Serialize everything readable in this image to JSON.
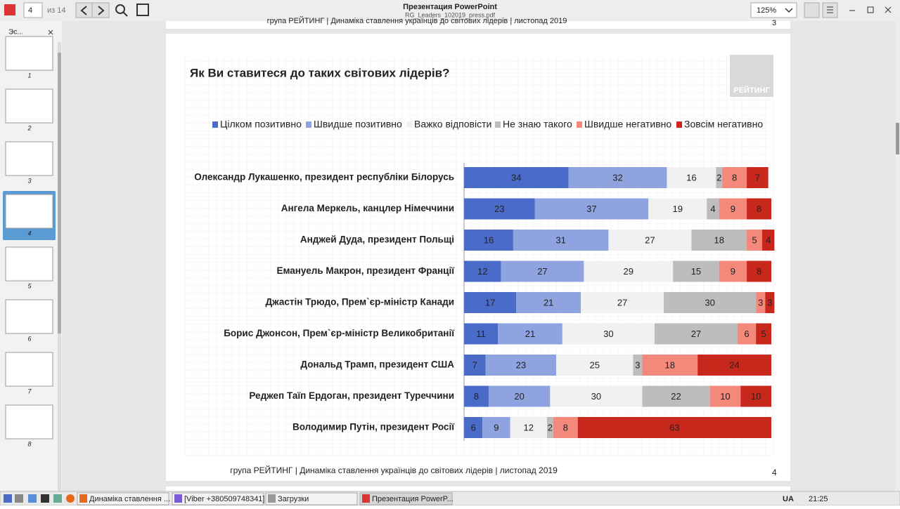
{
  "toolbar": {
    "page": "4",
    "page_count": "из 14",
    "title": "Презентация PowerPoint",
    "file": "RG_Leaders_102019_press.pdf",
    "zoom": "125%"
  },
  "sidebar": {
    "tab": "Эс...",
    "thumbnails": [
      "1",
      "2",
      "3",
      "4",
      "5",
      "6",
      "7",
      "8"
    ]
  },
  "prev_page": {
    "footer": "група РЕЙТИНГ | Динаміка ставлення українців до світових лідерів  | листопад 2019",
    "number": "3"
  },
  "slide": {
    "logo": "РЕЙТИНГ",
    "footer": "група РЕЙТИНГ | Динаміка ставлення українців до світових лідерів  | листопад 2019",
    "number": "4"
  },
  "chart_data": {
    "type": "bar",
    "orientation": "horizontal",
    "stacked": true,
    "title": "Як Ви ставитеся до таких світових лідерів?",
    "categories": [
      "Олександр Лукашенко, президент республіки Білорусь",
      "Ангела Меркель, канцлер Німеччини",
      "Анджей Дуда, президент Польщі",
      "Емануель Макрон, президент Франції",
      "Джастін Трюдо, Прем`єр-міністр Канади",
      "Борис Джонсон, Прем`єр-міністр Великобританії",
      "Дональд Трамп, президент США",
      "Реджеп Таїп Ердоган, президент Туреччини",
      "Володимир Путін, президент Росії"
    ],
    "series": [
      {
        "name": "Цілком позитивно",
        "color": "#4a6cc8",
        "values": [
          34,
          23,
          16,
          12,
          17,
          11,
          7,
          8,
          6
        ]
      },
      {
        "name": "Швидше позитивно",
        "color": "#8fa3e0",
        "values": [
          32,
          37,
          31,
          27,
          21,
          21,
          23,
          20,
          9
        ]
      },
      {
        "name": "Важко відповісти",
        "color": "#f1f1f1",
        "values": [
          16,
          19,
          27,
          29,
          27,
          30,
          25,
          30,
          12
        ]
      },
      {
        "name": "Не знаю такого",
        "color": "#bdbdbd",
        "values": [
          2,
          4,
          18,
          15,
          30,
          27,
          3,
          22,
          2
        ]
      },
      {
        "name": "Швидше негативно",
        "color": "#f4897b",
        "values": [
          8,
          9,
          5,
          9,
          3,
          6,
          18,
          10,
          8
        ]
      },
      {
        "name": "Зовсім негативно",
        "color": "#c8281c",
        "values": [
          7,
          8,
          4,
          8,
          3,
          5,
          24,
          10,
          63
        ]
      }
    ],
    "xlim": [
      0,
      100
    ],
    "legend": "top"
  },
  "taskbar": {
    "windows": [
      "Динаміка ставлення ...",
      "[Viber +380509748341]",
      "Загрузки",
      "Презентация PowerP..."
    ],
    "lang": "UA",
    "time": "21:25"
  }
}
